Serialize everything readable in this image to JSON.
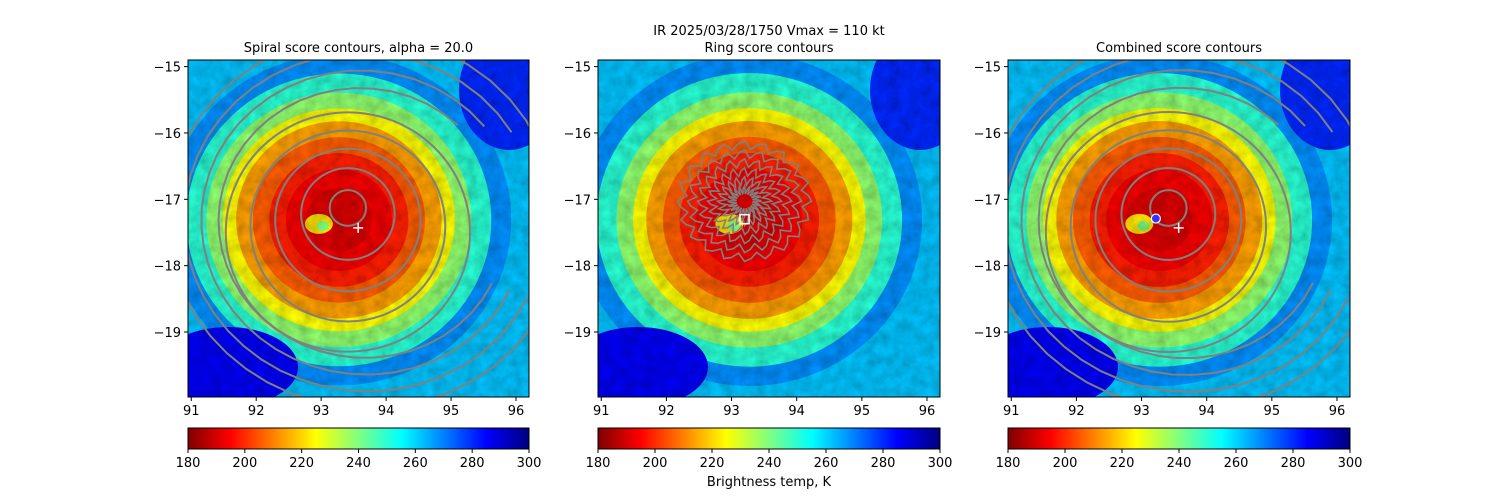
{
  "figure": {
    "suptitle": "IR  2025/03/28/1750    Vmax = 110 kt",
    "colorbar_label": "Brightness temp, K",
    "colormap": "jet_r",
    "colormap_stops": [
      "#800000",
      "#ff0000",
      "#ff8000",
      "#ffff00",
      "#80ff80",
      "#00ffff",
      "#0080ff",
      "#0000ff",
      "#000080"
    ],
    "contour_color": "#808080",
    "marker_color_first_guess": "#ffffff",
    "marker_color_best": "#3333ff"
  },
  "chart_data": [
    {
      "type": "heatmap",
      "title": "Spiral score contours, alpha = 20.0",
      "xlim": [
        90.95,
        96.2
      ],
      "ylim": [
        -19.98,
        -14.9
      ],
      "xticks": [
        91,
        92,
        93,
        94,
        95,
        96
      ],
      "yticks": [
        -15,
        -16,
        -17,
        -18,
        -19
      ],
      "storm_center": [
        93.15,
        -17.25
      ],
      "colorbar": {
        "range": [
          180,
          300
        ],
        "ticks": [
          180,
          200,
          220,
          240,
          260,
          280,
          300
        ]
      },
      "contours": "spiral",
      "markers": [
        {
          "kind": "first-guess",
          "symbol": "+",
          "lon": 93.57,
          "lat": -17.43
        }
      ]
    },
    {
      "type": "heatmap",
      "title": "Ring score contours",
      "xlim": [
        90.95,
        96.2
      ],
      "ylim": [
        -19.98,
        -14.9
      ],
      "xticks": [
        91,
        92,
        93,
        94,
        95,
        96
      ],
      "yticks": [
        -15,
        -16,
        -17,
        -18,
        -19
      ],
      "storm_center": [
        93.15,
        -17.25
      ],
      "colorbar": {
        "range": [
          180,
          300
        ],
        "ticks": [
          180,
          200,
          220,
          240,
          260,
          280,
          300
        ]
      },
      "contours": "ring",
      "markers": [
        {
          "kind": "ring-center",
          "symbol": "square",
          "lon": 93.2,
          "lat": -17.3
        }
      ]
    },
    {
      "type": "heatmap",
      "title": "Combined score contours",
      "xlim": [
        90.95,
        96.2
      ],
      "ylim": [
        -19.98,
        -14.9
      ],
      "xticks": [
        91,
        92,
        93,
        94,
        95,
        96
      ],
      "yticks": [
        -15,
        -16,
        -17,
        -18,
        -19
      ],
      "storm_center": [
        93.15,
        -17.25
      ],
      "colorbar": {
        "range": [
          180,
          300
        ],
        "ticks": [
          180,
          200,
          220,
          240,
          260,
          280,
          300
        ]
      },
      "contours": "spiral",
      "markers": [
        {
          "kind": "first-guess",
          "symbol": "+",
          "lon": 93.57,
          "lat": -17.43
        },
        {
          "kind": "best-center",
          "symbol": "circle",
          "lon": 93.22,
          "lat": -17.29
        }
      ]
    }
  ]
}
